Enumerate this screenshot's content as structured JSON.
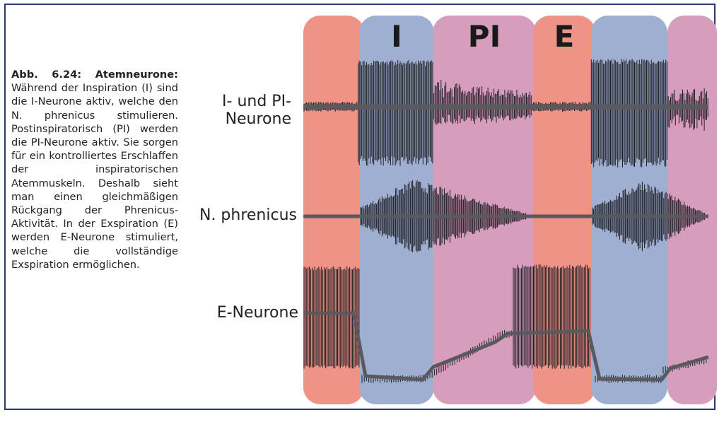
{
  "caption": {
    "title": "Abb. 6.24: Atemneurone:",
    "body": "Während der Inspiration (I) sind die I-Neurone aktiv, welche den N. phrenicus stimulieren. Postinspiratorisch (PI) werden die PI-Neurone aktiv. Sie sorgen für ein kontrolliertes Erschlaffen der inspiratorischen Atemmuskeln. Deshalb sieht man einen gleichmäßigen Rückgang der Phrenicus-Aktivität. In der Exspiration (E) werden E-Neurone stimuliert, welche die vollständige Exspiration ermöglichen."
  },
  "phases": [
    {
      "label": "",
      "color": "#ee9386"
    },
    {
      "label": "I",
      "color": "#9eafd1"
    },
    {
      "label": "PI",
      "color": "#d79dbd"
    },
    {
      "label": "E",
      "color": "#ee9386"
    },
    {
      "label": "",
      "color": "#9eafd1"
    },
    {
      "label": "",
      "color": "#d79dbd"
    }
  ],
  "traces": {
    "i_pi": {
      "label_line1": "I- und PI-",
      "label_line2": "Neurone"
    },
    "phrenicus": {
      "label": "N. phrenicus"
    },
    "e": {
      "label": "E-Neurone"
    }
  },
  "colors": {
    "frame": "#2c3a72",
    "trace": "#1e1e24",
    "baseline": "#5a5a5e"
  }
}
